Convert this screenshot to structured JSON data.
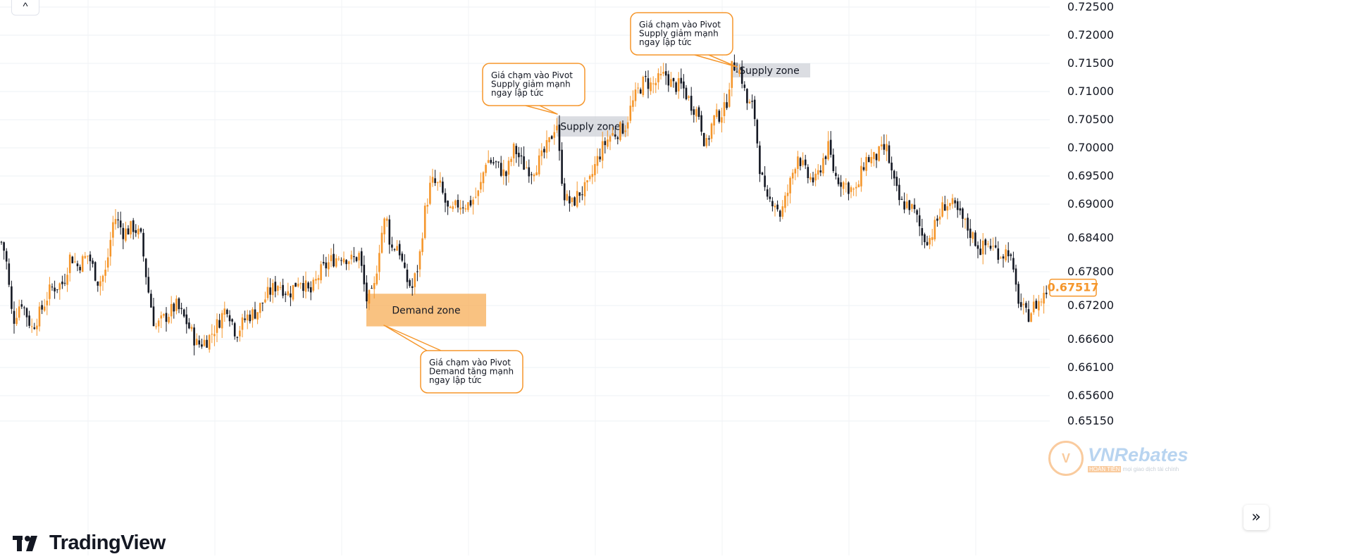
{
  "chart_data": {
    "type": "candlestick",
    "title": "",
    "xlabel": "",
    "ylabel": "",
    "ylim": [
      0.649,
      0.7275
    ],
    "y_ticks": [
      "0.72500",
      "0.72000",
      "0.71500",
      "0.71000",
      "0.70500",
      "0.70000",
      "0.69500",
      "0.69000",
      "0.68400",
      "0.67800",
      "0.67200",
      "0.66600",
      "0.66100",
      "0.65600",
      "0.65150"
    ],
    "last_price": "0.67517",
    "grid": true,
    "up_color": "#f5962b",
    "down_color": "#131722",
    "close_path": [
      [
        0,
        0.684
      ],
      [
        8,
        0.681
      ],
      [
        18,
        0.669
      ],
      [
        30,
        0.673
      ],
      [
        45,
        0.668
      ],
      [
        58,
        0.671
      ],
      [
        72,
        0.675
      ],
      [
        90,
        0.676
      ],
      [
        100,
        0.681
      ],
      [
        110,
        0.679
      ],
      [
        125,
        0.681
      ],
      [
        140,
        0.676
      ],
      [
        150,
        0.678
      ],
      [
        162,
        0.688
      ],
      [
        175,
        0.685
      ],
      [
        190,
        0.686
      ],
      [
        200,
        0.684
      ],
      [
        210,
        0.675
      ],
      [
        220,
        0.668
      ],
      [
        235,
        0.67
      ],
      [
        250,
        0.672
      ],
      [
        265,
        0.669
      ],
      [
        280,
        0.665
      ],
      [
        295,
        0.666
      ],
      [
        310,
        0.669
      ],
      [
        322,
        0.672
      ],
      [
        335,
        0.667
      ],
      [
        350,
        0.67
      ],
      [
        365,
        0.671
      ],
      [
        380,
        0.674
      ],
      [
        395,
        0.676
      ],
      [
        410,
        0.674
      ],
      [
        425,
        0.677
      ],
      [
        440,
        0.674
      ],
      [
        455,
        0.678
      ],
      [
        470,
        0.68
      ],
      [
        485,
        0.681
      ],
      [
        500,
        0.68
      ],
      [
        510,
        0.681
      ],
      [
        520,
        0.673
      ],
      [
        530,
        0.674
      ],
      [
        540,
        0.684
      ],
      [
        548,
        0.688
      ],
      [
        555,
        0.682
      ],
      [
        565,
        0.683
      ],
      [
        575,
        0.677
      ],
      [
        585,
        0.675
      ],
      [
        595,
        0.68
      ],
      [
        602,
        0.688
      ],
      [
        612,
        0.694
      ],
      [
        625,
        0.693
      ],
      [
        638,
        0.688
      ],
      [
        650,
        0.69
      ],
      [
        665,
        0.69
      ],
      [
        680,
        0.692
      ],
      [
        690,
        0.698
      ],
      [
        705,
        0.697
      ],
      [
        718,
        0.695
      ],
      [
        730,
        0.7
      ],
      [
        742,
        0.697
      ],
      [
        755,
        0.696
      ],
      [
        768,
        0.698
      ],
      [
        780,
        0.701
      ],
      [
        790,
        0.705
      ],
      [
        795,
        0.697
      ],
      [
        802,
        0.691
      ],
      [
        812,
        0.69
      ],
      [
        822,
        0.692
      ],
      [
        835,
        0.693
      ],
      [
        845,
        0.697
      ],
      [
        855,
        0.7
      ],
      [
        865,
        0.702
      ],
      [
        878,
        0.703
      ],
      [
        888,
        0.704
      ],
      [
        895,
        0.707
      ],
      [
        905,
        0.71
      ],
      [
        915,
        0.712
      ],
      [
        925,
        0.711
      ],
      [
        935,
        0.712
      ],
      [
        945,
        0.713
      ],
      [
        955,
        0.711
      ],
      [
        968,
        0.711
      ],
      [
        980,
        0.708
      ],
      [
        992,
        0.706
      ],
      [
        1002,
        0.7
      ],
      [
        1012,
        0.705
      ],
      [
        1022,
        0.706
      ],
      [
        1030,
        0.707
      ],
      [
        1038,
        0.714
      ],
      [
        1045,
        0.715
      ],
      [
        1052,
        0.713
      ],
      [
        1060,
        0.708
      ],
      [
        1070,
        0.707
      ],
      [
        1078,
        0.697
      ],
      [
        1088,
        0.69
      ],
      [
        1098,
        0.691
      ],
      [
        1108,
        0.688
      ],
      [
        1120,
        0.693
      ],
      [
        1132,
        0.699
      ],
      [
        1145,
        0.695
      ],
      [
        1158,
        0.694
      ],
      [
        1168,
        0.698
      ],
      [
        1176,
        0.7
      ],
      [
        1185,
        0.695
      ],
      [
        1195,
        0.694
      ],
      [
        1205,
        0.693
      ],
      [
        1215,
        0.692
      ],
      [
        1228,
        0.698
      ],
      [
        1240,
        0.698
      ],
      [
        1248,
        0.699
      ],
      [
        1258,
        0.7
      ],
      [
        1268,
        0.694
      ],
      [
        1278,
        0.69
      ],
      [
        1290,
        0.69
      ],
      [
        1300,
        0.688
      ],
      [
        1310,
        0.684
      ],
      [
        1320,
        0.684
      ],
      [
        1330,
        0.687
      ],
      [
        1340,
        0.69
      ],
      [
        1350,
        0.69
      ],
      [
        1362,
        0.688
      ],
      [
        1372,
        0.686
      ],
      [
        1382,
        0.684
      ],
      [
        1392,
        0.682
      ],
      [
        1402,
        0.683
      ],
      [
        1412,
        0.682
      ],
      [
        1422,
        0.681
      ],
      [
        1432,
        0.682
      ],
      [
        1440,
        0.676
      ],
      [
        1448,
        0.672
      ],
      [
        1458,
        0.67
      ],
      [
        1468,
        0.672
      ],
      [
        1478,
        0.673
      ],
      [
        1488,
        0.6752
      ]
    ],
    "zones": [
      {
        "label": "Demand zone",
        "kind": "demand",
        "y_low": 0.6683,
        "y_high": 0.6741
      },
      {
        "label": "Supply zone",
        "kind": "supply",
        "y_low": 0.702,
        "y_high": 0.7056
      },
      {
        "label": "Supply zone",
        "kind": "supply",
        "y_low": 0.7125,
        "y_high": 0.715
      }
    ],
    "annotations": [
      {
        "lines": [
          "Giá chạm vào Pivot",
          "Supply giảm mạnh",
          "ngay lập tức"
        ]
      },
      {
        "lines": [
          "Giá chạm vào Pivot",
          "Supply giảm mạnh",
          "ngay lập tức"
        ]
      },
      {
        "lines": [
          "Giá chạm vào Pivot",
          "Demand tăng mạnh",
          "ngay lập tức"
        ]
      }
    ]
  },
  "ui": {
    "collapse_icon": "chevron-up-icon",
    "collapse_glyph": "^",
    "scroll_icon": "double-chevron-right-icon",
    "scroll_glyph": "»",
    "brand_name": "TradingView",
    "watermark_brand": "VNRebates",
    "watermark_tag_highlight": "HOÀN TIỀN",
    "watermark_tag_text": "mọi giao dịch tài chính",
    "accent_color": "#f5962b"
  }
}
